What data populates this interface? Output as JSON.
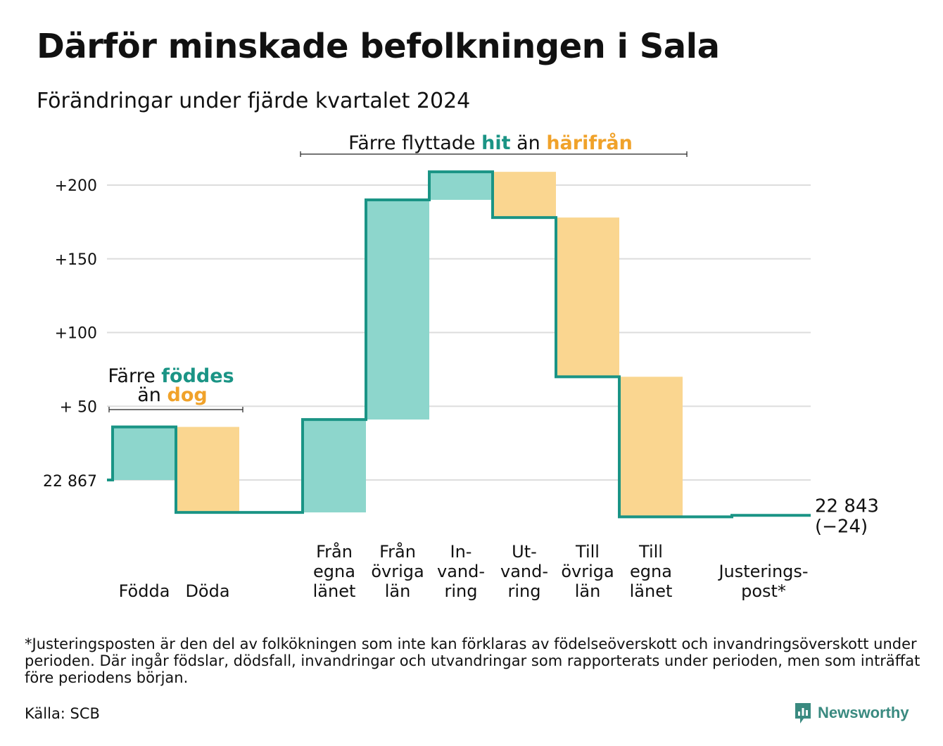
{
  "header": {
    "title": "Därför minskade befolkningen i Sala",
    "subtitle": "Förändringar under fjärde kvartalet 2024"
  },
  "colors": {
    "teal_line": "#1a9485",
    "teal_fill": "#8dd6cc",
    "orange_fill": "#fad690",
    "teal_text": "#1a9485",
    "orange_text": "#f0a22a",
    "grid": "#dddddd"
  },
  "chart_data": {
    "type": "waterfall",
    "baseline_label": "22 867",
    "y_tick_labels": [
      "+200",
      "+150",
      "+100",
      "+ 50"
    ],
    "y_ticks": [
      200,
      150,
      100,
      50
    ],
    "ylim": [
      -40,
      218
    ],
    "start_value": 0,
    "steps": [
      {
        "label": [
          "Födda"
        ],
        "value": 36,
        "kind": "in"
      },
      {
        "label": [
          "Döda"
        ],
        "value": -58,
        "kind": "out"
      },
      {
        "label": [
          "Från",
          "egna",
          "länet"
        ],
        "value": 63,
        "kind": "in"
      },
      {
        "label": [
          "Från",
          "övriga",
          "län"
        ],
        "value": 149,
        "kind": "in"
      },
      {
        "label": [
          "In-",
          "vand-",
          "ring"
        ],
        "value": 19,
        "kind": "in"
      },
      {
        "label": [
          "Ut-",
          "vand-",
          "ring"
        ],
        "value": -31,
        "kind": "out"
      },
      {
        "label": [
          "Till",
          "övriga",
          "län"
        ],
        "value": -108,
        "kind": "out"
      },
      {
        "label": [
          "Till",
          "egna",
          "länet"
        ],
        "value": -95,
        "kind": "out"
      },
      {
        "label": [
          "Justerings-",
          "post*"
        ],
        "value": 1,
        "kind": "adjust"
      }
    ],
    "end_label": [
      "22 843",
      "(−24)"
    ],
    "annotations": {
      "births": {
        "line1_pre": "Färre ",
        "line1_hi": "föddes",
        "line2_pre": "än ",
        "line2_hi": "dog"
      },
      "migration": {
        "pre": "Färre flyttade ",
        "hi1": "hit",
        "mid": " än ",
        "hi2": "härifrån"
      }
    }
  },
  "footnote": "*Justeringsposten är den del av folkökningen som inte kan förklaras av födelseöverskott och invandringsöverskott under perioden. Där ingår födslar, dödsfall, invandringar och utvandringar som rapporterats under perioden, men som inträffat före periodens början.",
  "source": "Källa: SCB",
  "brand": {
    "name": "Newsworthy",
    "icon": "newsworthy-logo-icon"
  }
}
